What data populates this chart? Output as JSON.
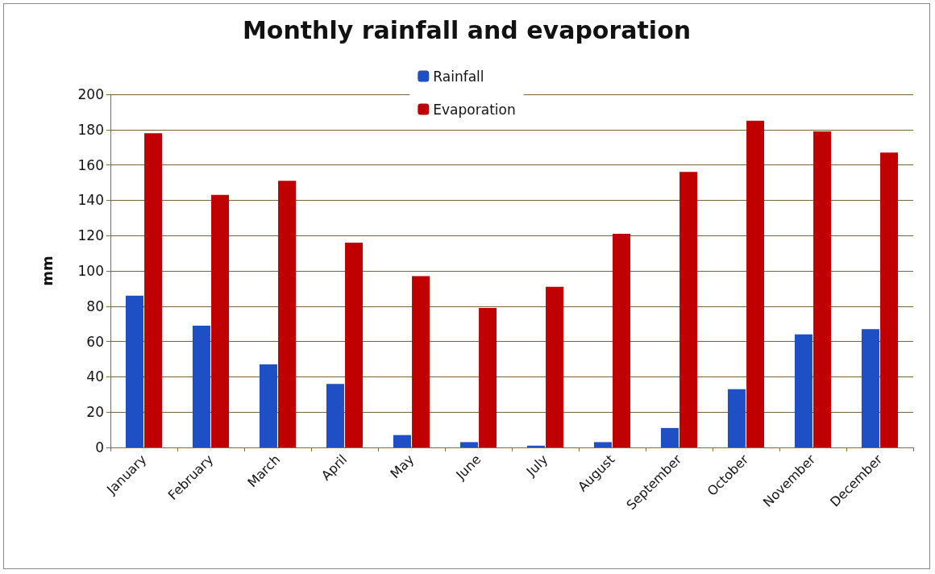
{
  "chart_data": {
    "type": "bar",
    "title": "Monthly rainfall and evaporation",
    "ylabel": "mm",
    "categories": [
      "January",
      "February",
      "March",
      "April",
      "May",
      "June",
      "July",
      "August",
      "September",
      "October",
      "November",
      "December"
    ],
    "series": [
      {
        "name": "Rainfall",
        "color": "#1f4fc4",
        "values": [
          86,
          69,
          47,
          36,
          7,
          3,
          1,
          3,
          11,
          33,
          64,
          67
        ]
      },
      {
        "name": "Evaporation",
        "color": "#c00000",
        "values": [
          178,
          143,
          151,
          116,
          97,
          79,
          91,
          121,
          156,
          185,
          179,
          167
        ]
      }
    ],
    "ylim": [
      0,
      200
    ],
    "yticks": [
      0,
      20,
      40,
      60,
      80,
      100,
      120,
      140,
      160,
      180,
      200
    ],
    "grid": "y",
    "legend": "top"
  }
}
